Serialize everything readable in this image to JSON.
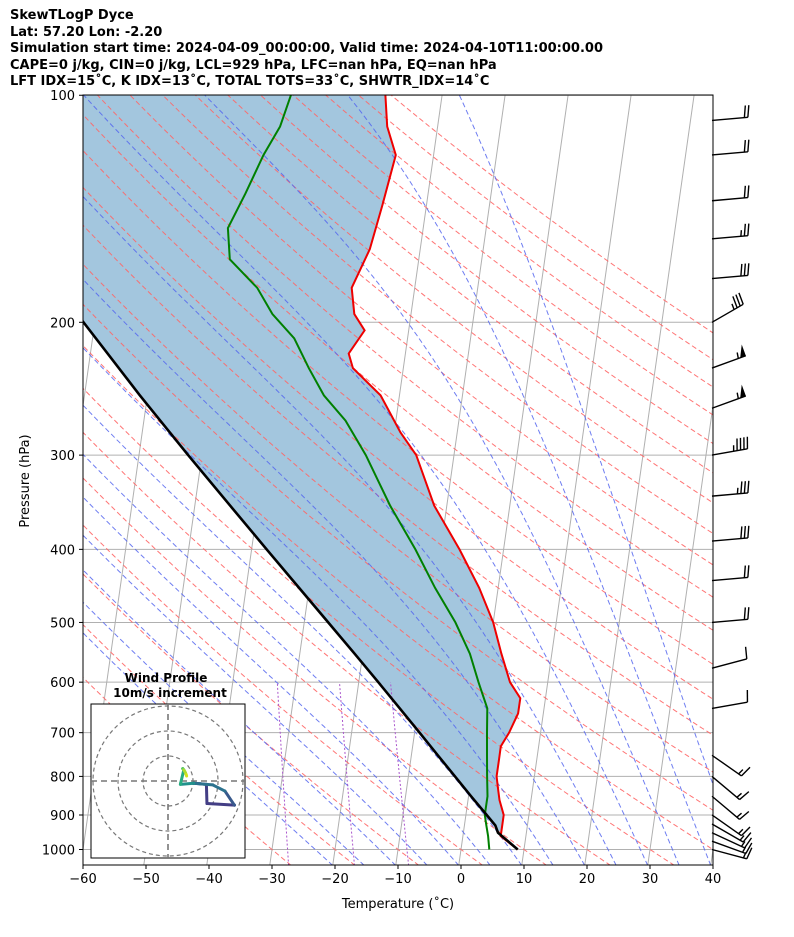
{
  "header": {
    "line1": "SkewTLogP Dyce",
    "line2": "Lat: 57.20   Lon: -2.20",
    "line3": "Simulation start time: 2024-04-09_00:00:00, Valid time: 2024-04-10T11:00:00.00",
    "line4": "CAPE=0 j/kg, CIN=0 j/kg, LCL=929 hPa, LFC=nan hPa, EQ=nan hPa",
    "line5": "LFT IDX=15˚C, K IDX=13˚C, TOTAL TOTS=33˚C, SHWTR_IDX=14˚C"
  },
  "chart_data": {
    "type": "line",
    "xlabel": "Temperature (˚C)",
    "ylabel": "Pressure (hPa)",
    "xlim": [
      -60,
      40
    ],
    "ylim": [
      1050,
      100
    ],
    "yscale": "log",
    "grid": true,
    "xticks": [
      -60,
      -50,
      -40,
      -30,
      -20,
      -10,
      0,
      10,
      20,
      30,
      40
    ],
    "yticks": [
      1000,
      900,
      800,
      700,
      600,
      500,
      400,
      300,
      200,
      100
    ],
    "series": [
      {
        "role": "temperature",
        "color": "#ee0000",
        "points": [
          [
            1000,
            9
          ],
          [
            960,
            6
          ],
          [
            930,
            6
          ],
          [
            900,
            6
          ],
          [
            860,
            5
          ],
          [
            830,
            4.5
          ],
          [
            800,
            4
          ],
          [
            760,
            4
          ],
          [
            730,
            4
          ],
          [
            700,
            5
          ],
          [
            660,
            6
          ],
          [
            630,
            6
          ],
          [
            600,
            4
          ],
          [
            550,
            2
          ],
          [
            500,
            0
          ],
          [
            450,
            -3
          ],
          [
            400,
            -7
          ],
          [
            350,
            -12
          ],
          [
            300,
            -16
          ],
          [
            280,
            -19
          ],
          [
            250,
            -23
          ],
          [
            230,
            -28
          ],
          [
            220,
            -29
          ],
          [
            205,
            -27
          ],
          [
            195,
            -29
          ],
          [
            180,
            -30
          ],
          [
            160,
            -28
          ],
          [
            140,
            -27
          ],
          [
            120,
            -26
          ],
          [
            110,
            -28
          ],
          [
            100,
            -29
          ]
        ]
      },
      {
        "role": "dewpoint",
        "color": "#008000",
        "points": [
          [
            1000,
            4.5
          ],
          [
            960,
            4
          ],
          [
            930,
            3.5
          ],
          [
            900,
            3
          ],
          [
            850,
            3
          ],
          [
            800,
            2.5
          ],
          [
            750,
            2
          ],
          [
            700,
            1.5
          ],
          [
            650,
            1
          ],
          [
            600,
            -1
          ],
          [
            550,
            -3
          ],
          [
            500,
            -6
          ],
          [
            450,
            -10
          ],
          [
            400,
            -14
          ],
          [
            350,
            -19
          ],
          [
            300,
            -24
          ],
          [
            270,
            -28
          ],
          [
            250,
            -32
          ],
          [
            230,
            -35
          ],
          [
            210,
            -38
          ],
          [
            195,
            -42
          ],
          [
            180,
            -45
          ],
          [
            165,
            -50
          ],
          [
            150,
            -51
          ],
          [
            135,
            -49
          ],
          [
            120,
            -47
          ],
          [
            110,
            -45
          ],
          [
            100,
            -44
          ]
        ]
      },
      {
        "role": "parcel",
        "color": "#000000",
        "points": [
          [
            1000,
            9
          ],
          [
            950,
            5.5
          ],
          [
            929,
            4.9
          ],
          [
            900,
            3.3
          ],
          [
            850,
            0.4
          ],
          [
            800,
            -2.6
          ],
          [
            750,
            -5.8
          ],
          [
            700,
            -9.2
          ],
          [
            650,
            -12.9
          ],
          [
            600,
            -16.9
          ],
          [
            550,
            -21.3
          ],
          [
            500,
            -26.2
          ],
          [
            450,
            -31.6
          ],
          [
            400,
            -37.6
          ],
          [
            350,
            -44.4
          ],
          [
            300,
            -52.2
          ],
          [
            250,
            -61.2
          ],
          [
            200,
            -71.8
          ],
          [
            150,
            -85
          ],
          [
            120,
            -94
          ],
          [
            100,
            -101
          ]
        ]
      }
    ],
    "wind_barbs": [
      {
        "p": 1000,
        "speed": 15,
        "dir": 255
      },
      {
        "p": 975,
        "speed": 15,
        "dir": 250
      },
      {
        "p": 950,
        "speed": 15,
        "dir": 245
      },
      {
        "p": 925,
        "speed": 15,
        "dir": 240
      },
      {
        "p": 900,
        "speed": 15,
        "dir": 235
      },
      {
        "p": 850,
        "speed": 15,
        "dir": 230
      },
      {
        "p": 800,
        "speed": 15,
        "dir": 230
      },
      {
        "p": 750,
        "speed": 15,
        "dir": 235
      },
      {
        "p": 650,
        "speed": 10,
        "dir": 280
      },
      {
        "p": 575,
        "speed": 10,
        "dir": 285
      },
      {
        "p": 500,
        "speed": 20,
        "dir": 275
      },
      {
        "p": 440,
        "speed": 20,
        "dir": 275
      },
      {
        "p": 390,
        "speed": 30,
        "dir": 275
      },
      {
        "p": 340,
        "speed": 35,
        "dir": 275
      },
      {
        "p": 300,
        "speed": 45,
        "dir": 280
      },
      {
        "p": 260,
        "speed": 55,
        "dir": 290
      },
      {
        "p": 230,
        "speed": 55,
        "dir": 290
      },
      {
        "p": 200,
        "speed": 35,
        "dir": 300
      },
      {
        "p": 175,
        "speed": 30,
        "dir": 275
      },
      {
        "p": 155,
        "speed": 25,
        "dir": 275
      },
      {
        "p": 138,
        "speed": 20,
        "dir": 275
      },
      {
        "p": 120,
        "speed": 20,
        "dir": 275
      },
      {
        "p": 108,
        "speed": 20,
        "dir": 275
      }
    ],
    "inset": {
      "title": "Wind Profile",
      "subtitle": "10m/s increment"
    }
  },
  "colors": {
    "temperature": "#ee0000",
    "dewpoint": "#008000",
    "parcel": "#000000",
    "cape_fill": "#a3c6de",
    "dry_adiabat": "#ff6666",
    "moist_adiabat": "#5566ee",
    "mixing_ratio": "#aa55cc",
    "isotherm": "#b0b0b0"
  }
}
